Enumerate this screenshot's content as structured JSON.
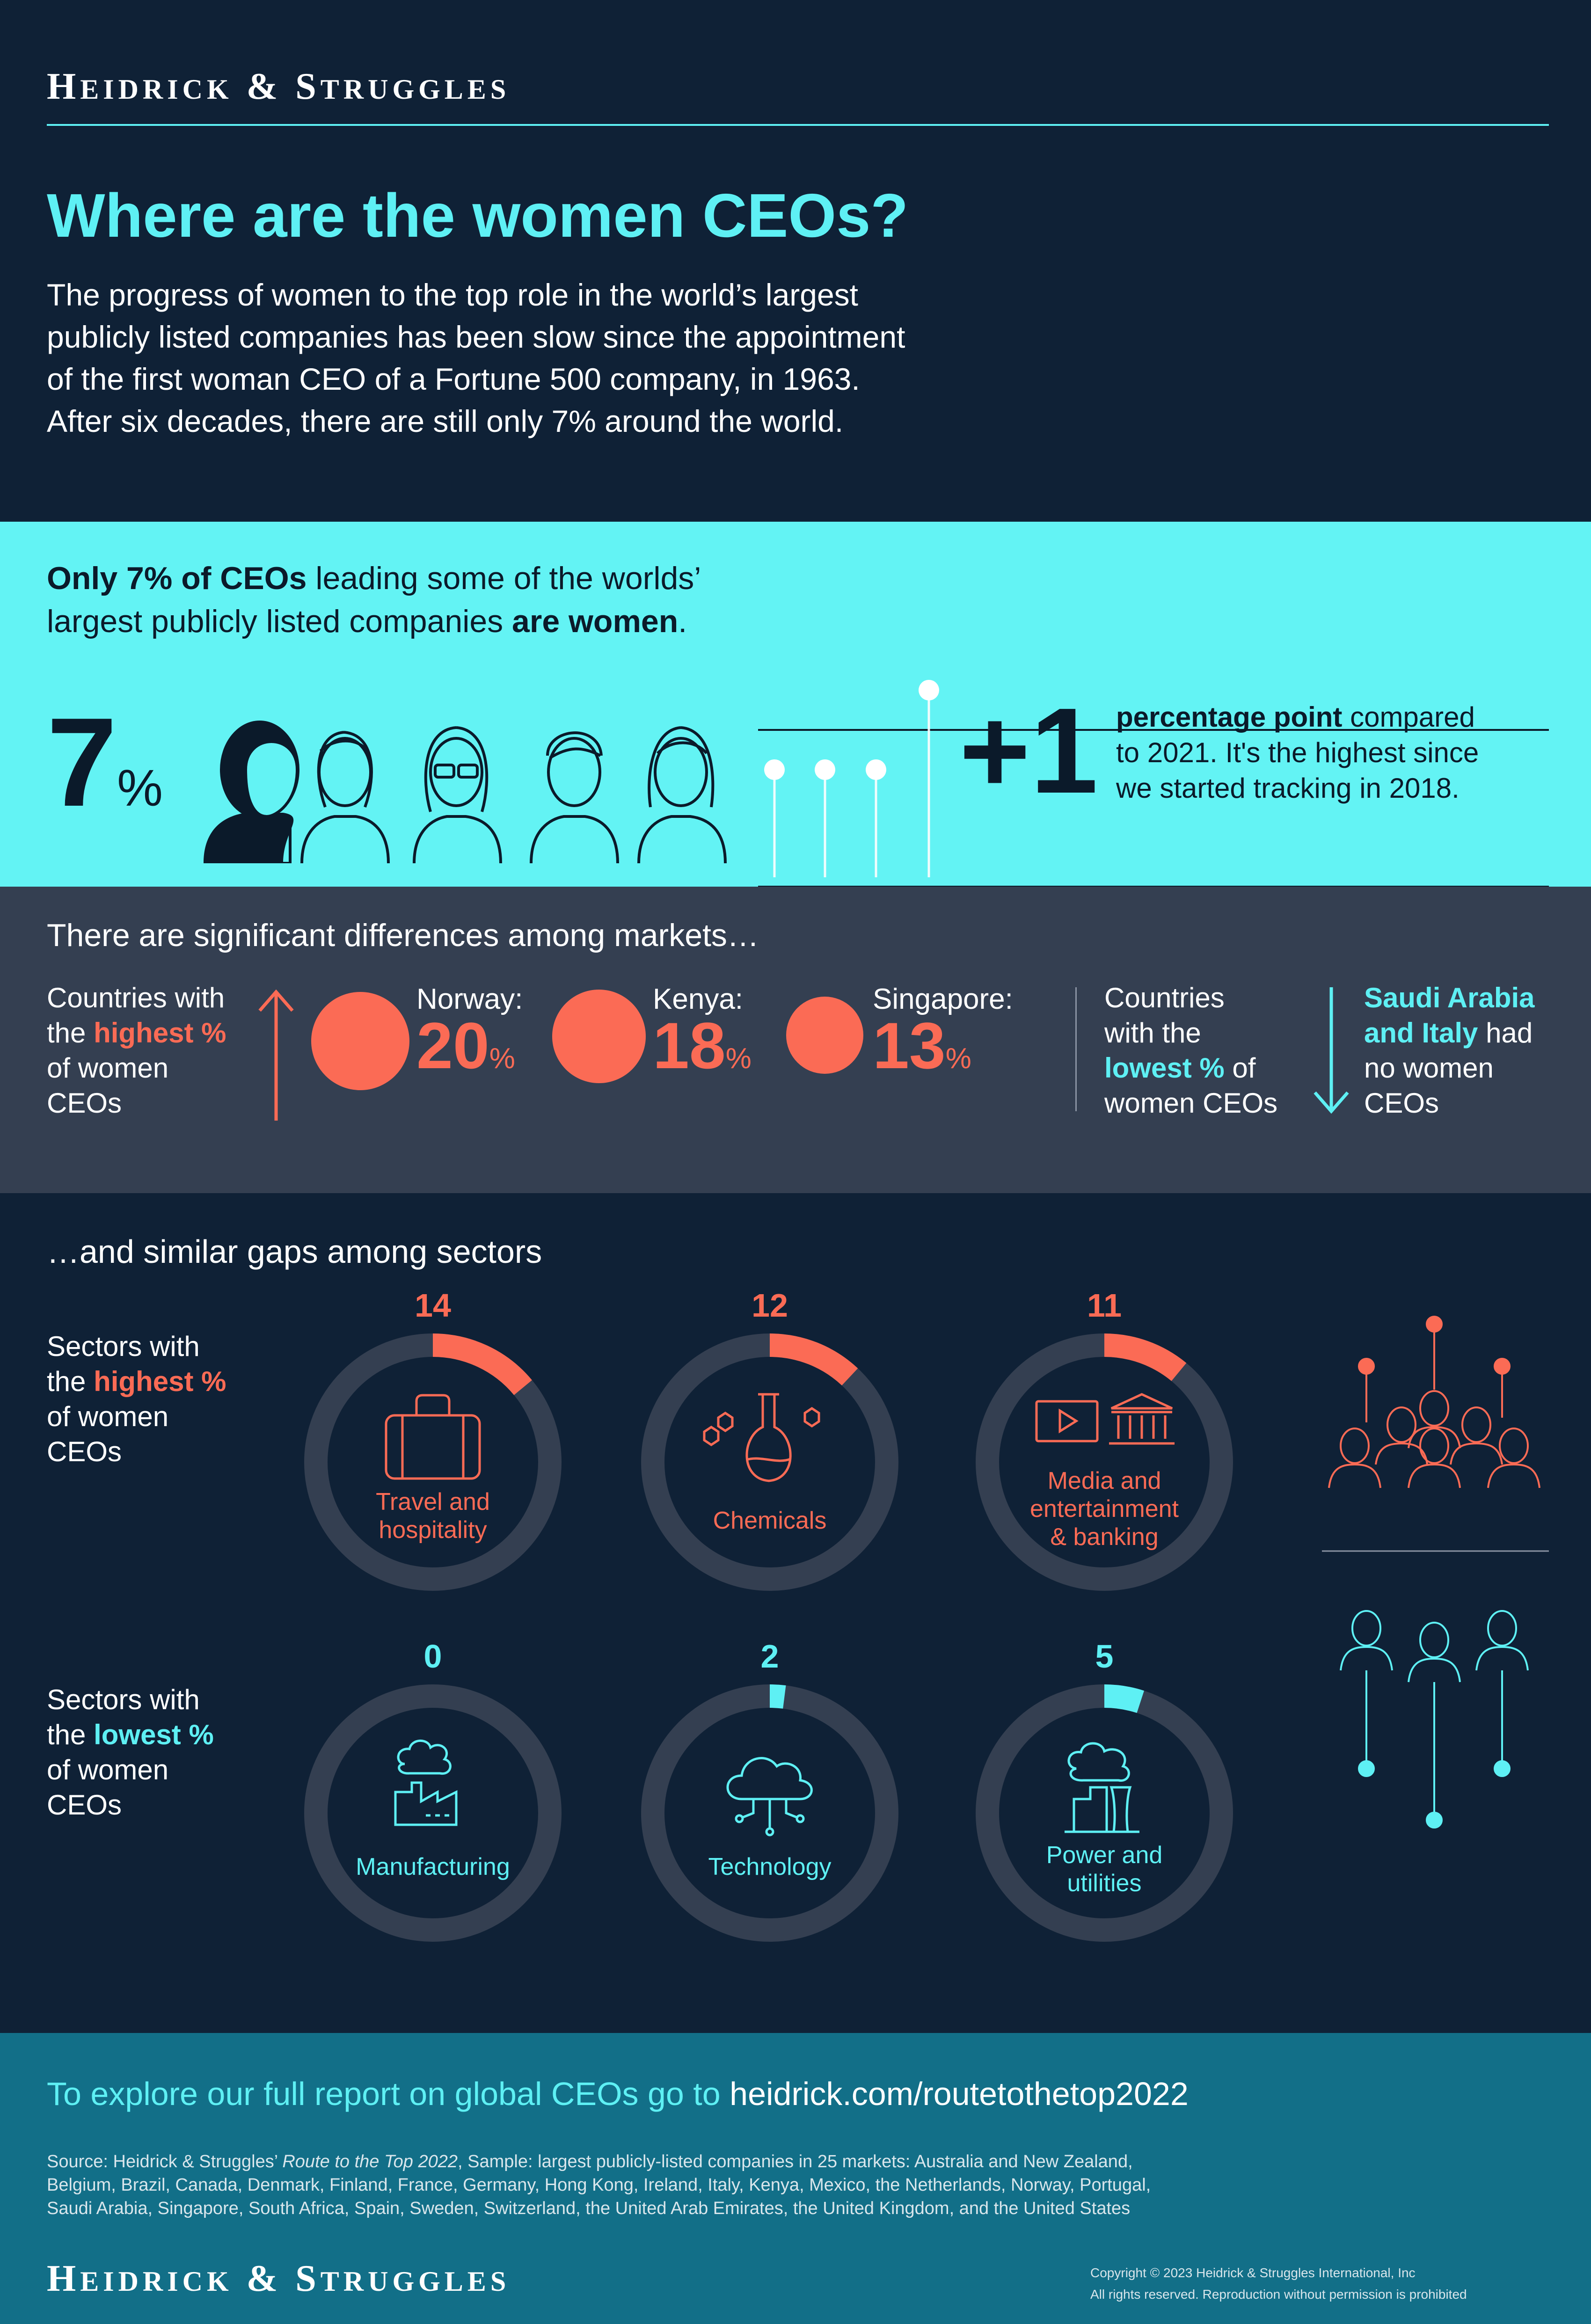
{
  "brand": {
    "name_first_initial": "H",
    "name_first_rest": "EIDRICK",
    "ampersand": "&",
    "name_second_initial": "S",
    "name_second_rest": "TRUGGLES"
  },
  "hero": {
    "title": "Where are the women CEOs?",
    "intro_lines": [
      "The progress of women to the top role in the world’s largest",
      "publicly listed companies has been slow since the appointment",
      "of the first woman CEO of a Fortune 500 company, in 1963.",
      "After six decades, there are still only 7% around the world."
    ]
  },
  "headline": {
    "bold1": "Only 7% of CEOs",
    "normal1": " leading some of the worlds’",
    "normal2": "largest publicly listed companies ",
    "bold2": "are women",
    "end": "."
  },
  "stat7": {
    "value": "7",
    "unit": "%"
  },
  "change": {
    "value": "+1",
    "bold": "percentage point",
    "rest1": " compared",
    "line2": "to 2021. It's the highest since",
    "line3": "we started tracking in 2018."
  },
  "markets": {
    "heading": "There are significant differences among markets…",
    "highest_label": {
      "l1": "Countries with",
      "l2a": "the ",
      "l2b": "highest %",
      "l3": "of women",
      "l4": "CEOs"
    },
    "countries": [
      {
        "name": "Norway:",
        "value": "20",
        "unit": "%"
      },
      {
        "name": "Kenya:",
        "value": "18",
        "unit": "%"
      },
      {
        "name": "Singapore:",
        "value": "13",
        "unit": "%"
      }
    ],
    "lowest_label": {
      "l1": "Countries",
      "l2": "with the",
      "l3a": "lowest %",
      "l3b": " of",
      "l4": "women CEOs"
    },
    "lowest_result": {
      "l1": "Saudi Arabia",
      "l2a": "and Italy",
      "l2b": " had",
      "l3": "no women",
      "l4": "CEOs"
    }
  },
  "sectors": {
    "heading": "…and similar gaps among sectors",
    "highest_label": {
      "l1": "Sectors with",
      "l2a": "the ",
      "l2b": "highest %",
      "l3": "of women",
      "l4": "CEOs"
    },
    "lowest_label": {
      "l1": "Sectors with",
      "l2a": "the ",
      "l2b": "lowest %",
      "l3": "of women",
      "l4": "CEOs"
    },
    "top": [
      {
        "value": "14",
        "pct": 14,
        "l1": "Travel and",
        "l2": "hospitality",
        "icon": "suitcase-icon"
      },
      {
        "value": "12",
        "pct": 12,
        "l1": "Chemicals",
        "l2": "",
        "icon": "flask-icon"
      },
      {
        "value": "11",
        "pct": 11,
        "l1": "Media and",
        "l2": "entertainment",
        "l3": "& banking",
        "icon": "media-bank-icon"
      }
    ],
    "bottom": [
      {
        "value": "0",
        "pct": 0,
        "l1": "Manufacturing",
        "l2": "",
        "icon": "factory-icon"
      },
      {
        "value": "2",
        "pct": 2,
        "l1": "Technology",
        "l2": "",
        "icon": "cloud-icon"
      },
      {
        "value": "5",
        "pct": 5,
        "l1": "Power and",
        "l2": "utilities",
        "icon": "power-plant-icon"
      }
    ],
    "colors": {
      "high": "#fb6b55",
      "low": "#5ef0f4",
      "track": "#343f51"
    }
  },
  "footer": {
    "cta_prefix": "To explore our full report on global CEOs go to ",
    "cta_link": "heidrick.com/routetothetop2022",
    "source_a": "Source: Heidrick & Struggles’ ",
    "source_italic": "Route to the Top 2022",
    "source_b": ", Sample: largest publicly-listed companies in 25 markets: Australia and New Zealand,",
    "source_line2": "Belgium, Brazil, Canada, Denmark, Finland, France, Germany, Hong Kong, Ireland, Italy, Kenya, Mexico, the Netherlands, Norway, Portugal,",
    "source_line3": "Saudi Arabia, Singapore, South Africa, Spain, Sweden, Switzerland, the United Arab Emirates, the United Kingdom, and the United States",
    "copyright1": "Copyright © 2023 Heidrick & Struggles International, Inc",
    "copyright2": "All rights reserved. Reproduction without permission is prohibited"
  }
}
